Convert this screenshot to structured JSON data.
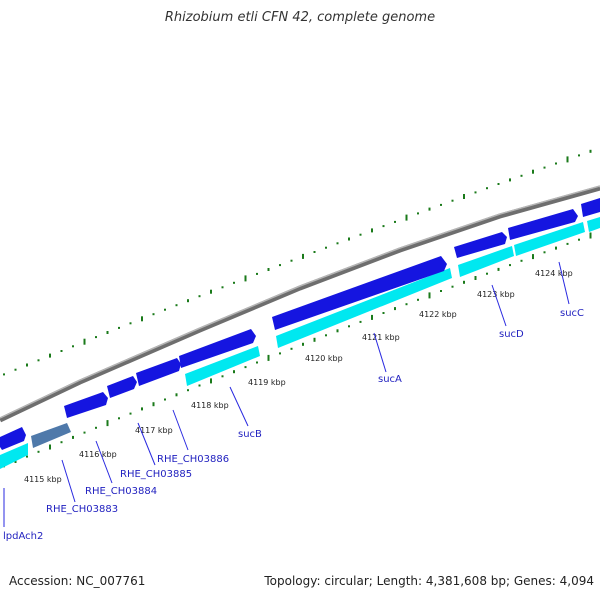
{
  "title": "Rhizobium etli CFN 42, complete genome",
  "accession_label": "Accession: NC_007761",
  "topology_label": "Topology: circular; Length: 4,381,608 bp; Genes: 4,094",
  "colors": {
    "background": "#ffffff",
    "backbone": "#8a8a8a",
    "gene_forward": "#1515e0",
    "gene_selected": "#4f79aa",
    "cds_band": "#00e8f0",
    "gc_marks": "#1a7a1a",
    "label": "#1f1fbf"
  },
  "scale_ticks": [
    "4115 kbp",
    "4116 kbp",
    "4117 kbp",
    "4118 kbp",
    "4119 kbp",
    "4120 kbp",
    "4121 kbp",
    "4122 kbp",
    "4123 kbp",
    "4124 kbp"
  ],
  "genes": [
    {
      "name": "lpdAch2"
    },
    {
      "name": "RHE_CH03883"
    },
    {
      "name": "RHE_CH03884"
    },
    {
      "name": "RHE_CH03885"
    },
    {
      "name": "RHE_CH03886"
    },
    {
      "name": "sucB"
    },
    {
      "name": "sucA"
    },
    {
      "name": "sucD"
    },
    {
      "name": "sucC"
    }
  ]
}
